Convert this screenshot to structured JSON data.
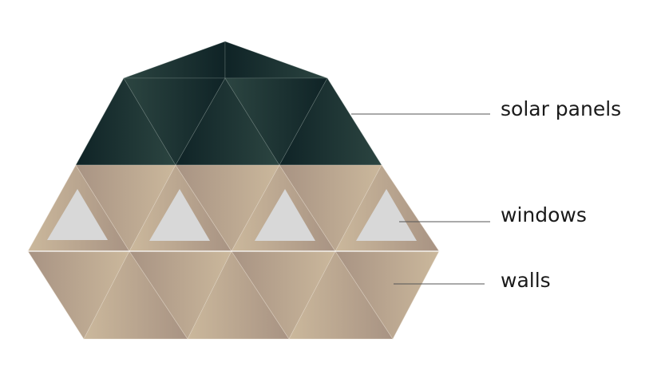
{
  "labels": {
    "solar_panels": "solar panels",
    "windows": "windows",
    "walls": "walls"
  },
  "colors": {
    "panel_dark": "#0f2326",
    "panel_light": "#2c4541",
    "wall_dark": "#a89383",
    "wall_light": "#cbb89c",
    "window": "#d8d8d8",
    "leader": "#555555",
    "background": "#ffffff"
  }
}
